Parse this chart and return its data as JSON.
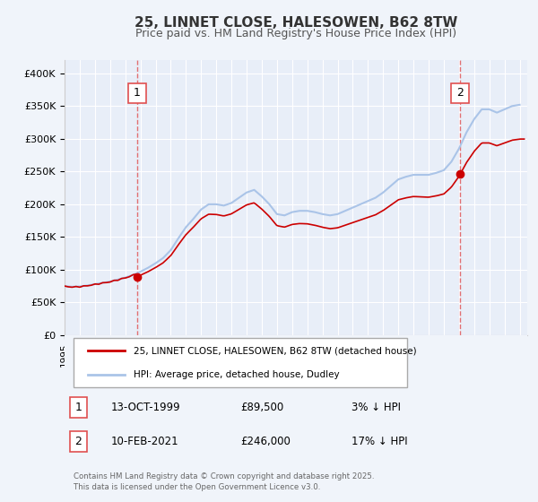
{
  "title": "25, LINNET CLOSE, HALESOWEN, B62 8TW",
  "subtitle": "Price paid vs. HM Land Registry's House Price Index (HPI)",
  "legend_line1": "25, LINNET CLOSE, HALESOWEN, B62 8TW (detached house)",
  "legend_line2": "HPI: Average price, detached house, Dudley",
  "sale1_date": "13-OCT-1999",
  "sale1_price": 89500,
  "sale1_label": "3% ↓ HPI",
  "sale2_date": "10-FEB-2021",
  "sale2_price": 246000,
  "sale2_label": "17% ↓ HPI",
  "footer": "Contains HM Land Registry data © Crown copyright and database right 2025.\nThis data is licensed under the Open Government Licence v3.0.",
  "bg_color": "#f0f4fa",
  "plot_bg_color": "#e8eef8",
  "grid_color": "#ffffff",
  "hpi_color": "#aac4e8",
  "price_color": "#cc0000",
  "vline_color": "#e05050",
  "ylim": [
    0,
    420000
  ],
  "xlim_start": 1995.0,
  "xlim_end": 2025.5
}
